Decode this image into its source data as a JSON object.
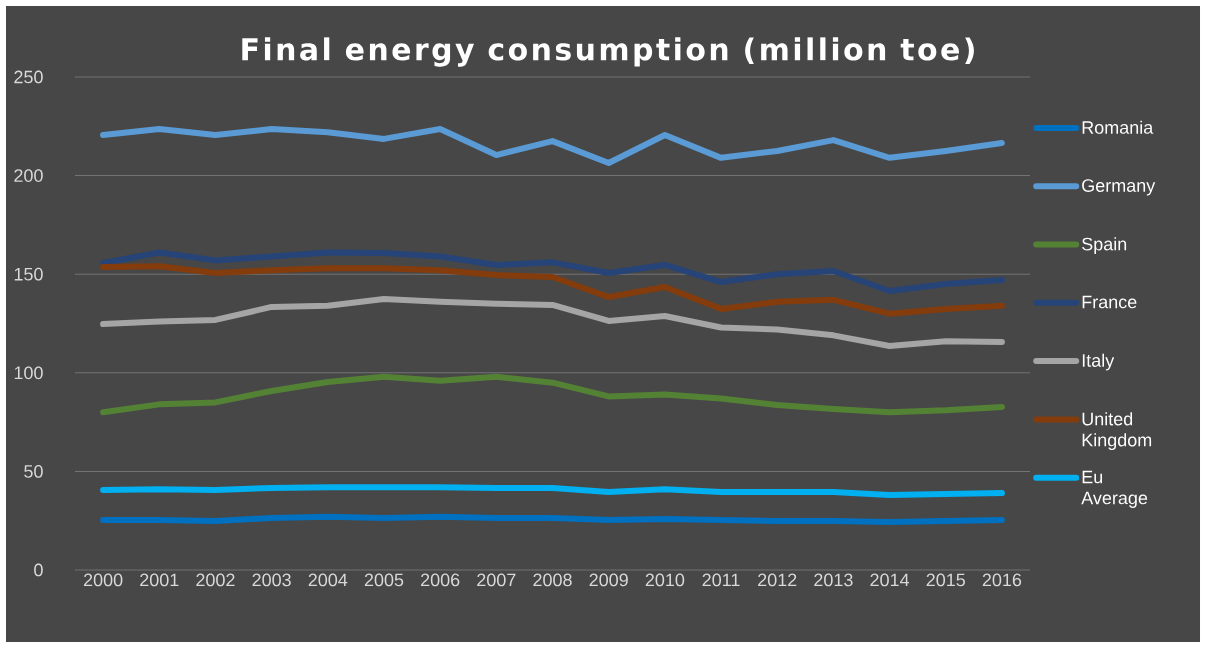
{
  "chart_data": {
    "type": "line",
    "title": "Final energy consumption (million toe)",
    "categories": [
      "2000",
      "2001",
      "2002",
      "2003",
      "2004",
      "2005",
      "2006",
      "2007",
      "2008",
      "2009",
      "2010",
      "2011",
      "2012",
      "2013",
      "2014",
      "2015",
      "2016"
    ],
    "ylim": [
      0,
      250
    ],
    "yticks": [
      0,
      50,
      100,
      150,
      200,
      250
    ],
    "grid": "y",
    "legend": "right",
    "line_style": "solid",
    "marker": "none",
    "series": [
      {
        "name": "Romania",
        "color": "#0070c0",
        "values": [
          25.4,
          25.4,
          24.8,
          26.4,
          27,
          26.4,
          27,
          26.4,
          26.4,
          25.4,
          25.9,
          25.4,
          24.8,
          24.8,
          24.3,
          24.8,
          25.4
        ]
      },
      {
        "name": "Germany",
        "color": "#5b9bd5",
        "values": [
          220.6,
          223.6,
          220.6,
          223.6,
          222,
          218.6,
          223.6,
          210.4,
          217.5,
          206.4,
          220.6,
          209,
          212.5,
          218,
          209,
          212.5,
          216.5
        ]
      },
      {
        "name": "Spain",
        "color": "#548235",
        "values": [
          80,
          84,
          85,
          90.8,
          95.3,
          98,
          96,
          98,
          95,
          88,
          89,
          87,
          83.7,
          81.6,
          80,
          81,
          82.7
        ]
      },
      {
        "name": "France",
        "color": "#264478",
        "values": [
          155.7,
          161,
          157,
          159,
          161,
          160.7,
          159,
          154.7,
          156,
          150.6,
          154.7,
          146,
          150,
          151.6,
          141.5,
          145,
          147
        ]
      },
      {
        "name": "Italy",
        "color": "#a5a5a5",
        "values": [
          124.7,
          126,
          126.8,
          133.4,
          134,
          137.4,
          136,
          135,
          134.4,
          126.3,
          128.8,
          123,
          122,
          119,
          113.6,
          116,
          115.6
        ]
      },
      {
        "name": "United Kingdom",
        "color": "#843c0c",
        "values": [
          153.6,
          154,
          150.6,
          152,
          153,
          153,
          152,
          149.6,
          148.6,
          138.4,
          143.5,
          132.4,
          136,
          137,
          130,
          132.4,
          134
        ]
      },
      {
        "name": "Eu Average",
        "color": "#00b0f0",
        "values": [
          40.6,
          41,
          40.6,
          41.6,
          42,
          42,
          42,
          41.6,
          41.6,
          39.6,
          41,
          39.6,
          39.6,
          39.6,
          38,
          38.5,
          39
        ]
      }
    ]
  }
}
